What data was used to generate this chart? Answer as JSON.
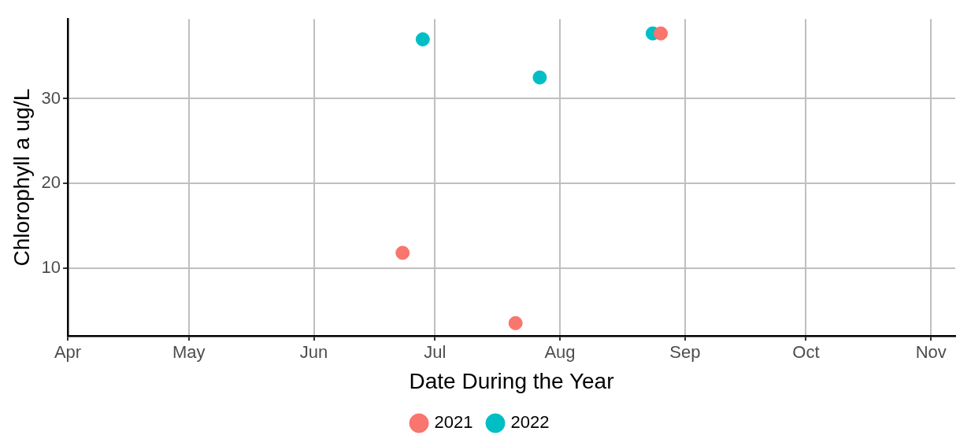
{
  "chart_data": {
    "type": "scatter",
    "xlabel": "Date During the Year",
    "ylabel": "Chlorophyll a ug/L",
    "xlim": [
      "--04-01",
      "--11-07"
    ],
    "xticks": [
      {
        "value": "--04-01",
        "label": "Apr"
      },
      {
        "value": "--05-01",
        "label": "May"
      },
      {
        "value": "--06-01",
        "label": "Jun"
      },
      {
        "value": "--07-01",
        "label": "Jul"
      },
      {
        "value": "--08-01",
        "label": "Aug"
      },
      {
        "value": "--09-01",
        "label": "Sep"
      },
      {
        "value": "--10-01",
        "label": "Oct"
      },
      {
        "value": "--11-01",
        "label": "Nov"
      }
    ],
    "ylim": [
      2,
      39.4
    ],
    "yticks": [
      10,
      20,
      30
    ],
    "grid": true,
    "legend": "bottom",
    "marker": "circle",
    "series": [
      {
        "name": "2021",
        "color": "#f8766d",
        "x": [
          "--06-23",
          "--07-21",
          "--08-26"
        ],
        "values": [
          11.8,
          3.5,
          37.7
        ]
      },
      {
        "name": "2022",
        "color": "#00bfc4",
        "x": [
          "--06-28",
          "--07-27",
          "--08-24"
        ],
        "values": [
          37.0,
          32.5,
          37.7
        ]
      }
    ]
  }
}
